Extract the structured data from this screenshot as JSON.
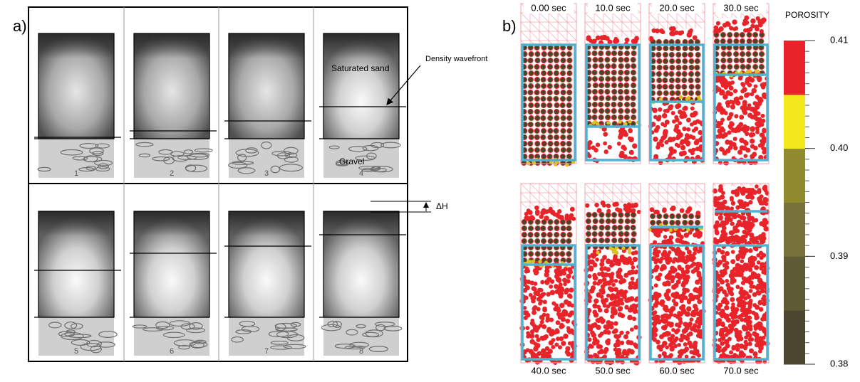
{
  "panel_a": {
    "label": "a)",
    "frames": [
      "1",
      "2",
      "3",
      "4",
      "5",
      "6",
      "7",
      "8"
    ],
    "annotations": {
      "saturated_sand": "Saturated sand",
      "density_wavefront": "Density wavefront",
      "gravel": "Gravel",
      "delta_h": "ΔH"
    }
  },
  "panel_b": {
    "label": "b)",
    "times": [
      "0.00 sec",
      "10.0 sec",
      "20.0 sec",
      "30.0 sec",
      "40.0 sec",
      "50.0 sec",
      "60.0 sec",
      "70.0 sec"
    ],
    "colorbar": {
      "title": "POROSITY",
      "lim": [
        0.38,
        0.41
      ],
      "ticks": [
        0.41,
        {
          "value": 0.4,
          "label": "0.40"
        },
        0.39,
        0.38
      ],
      "colors": [
        "#4a4630",
        "#5f5a36",
        "#77713a",
        "#8f8a2e",
        "#f2e81c",
        "#e8242a"
      ]
    }
  }
}
